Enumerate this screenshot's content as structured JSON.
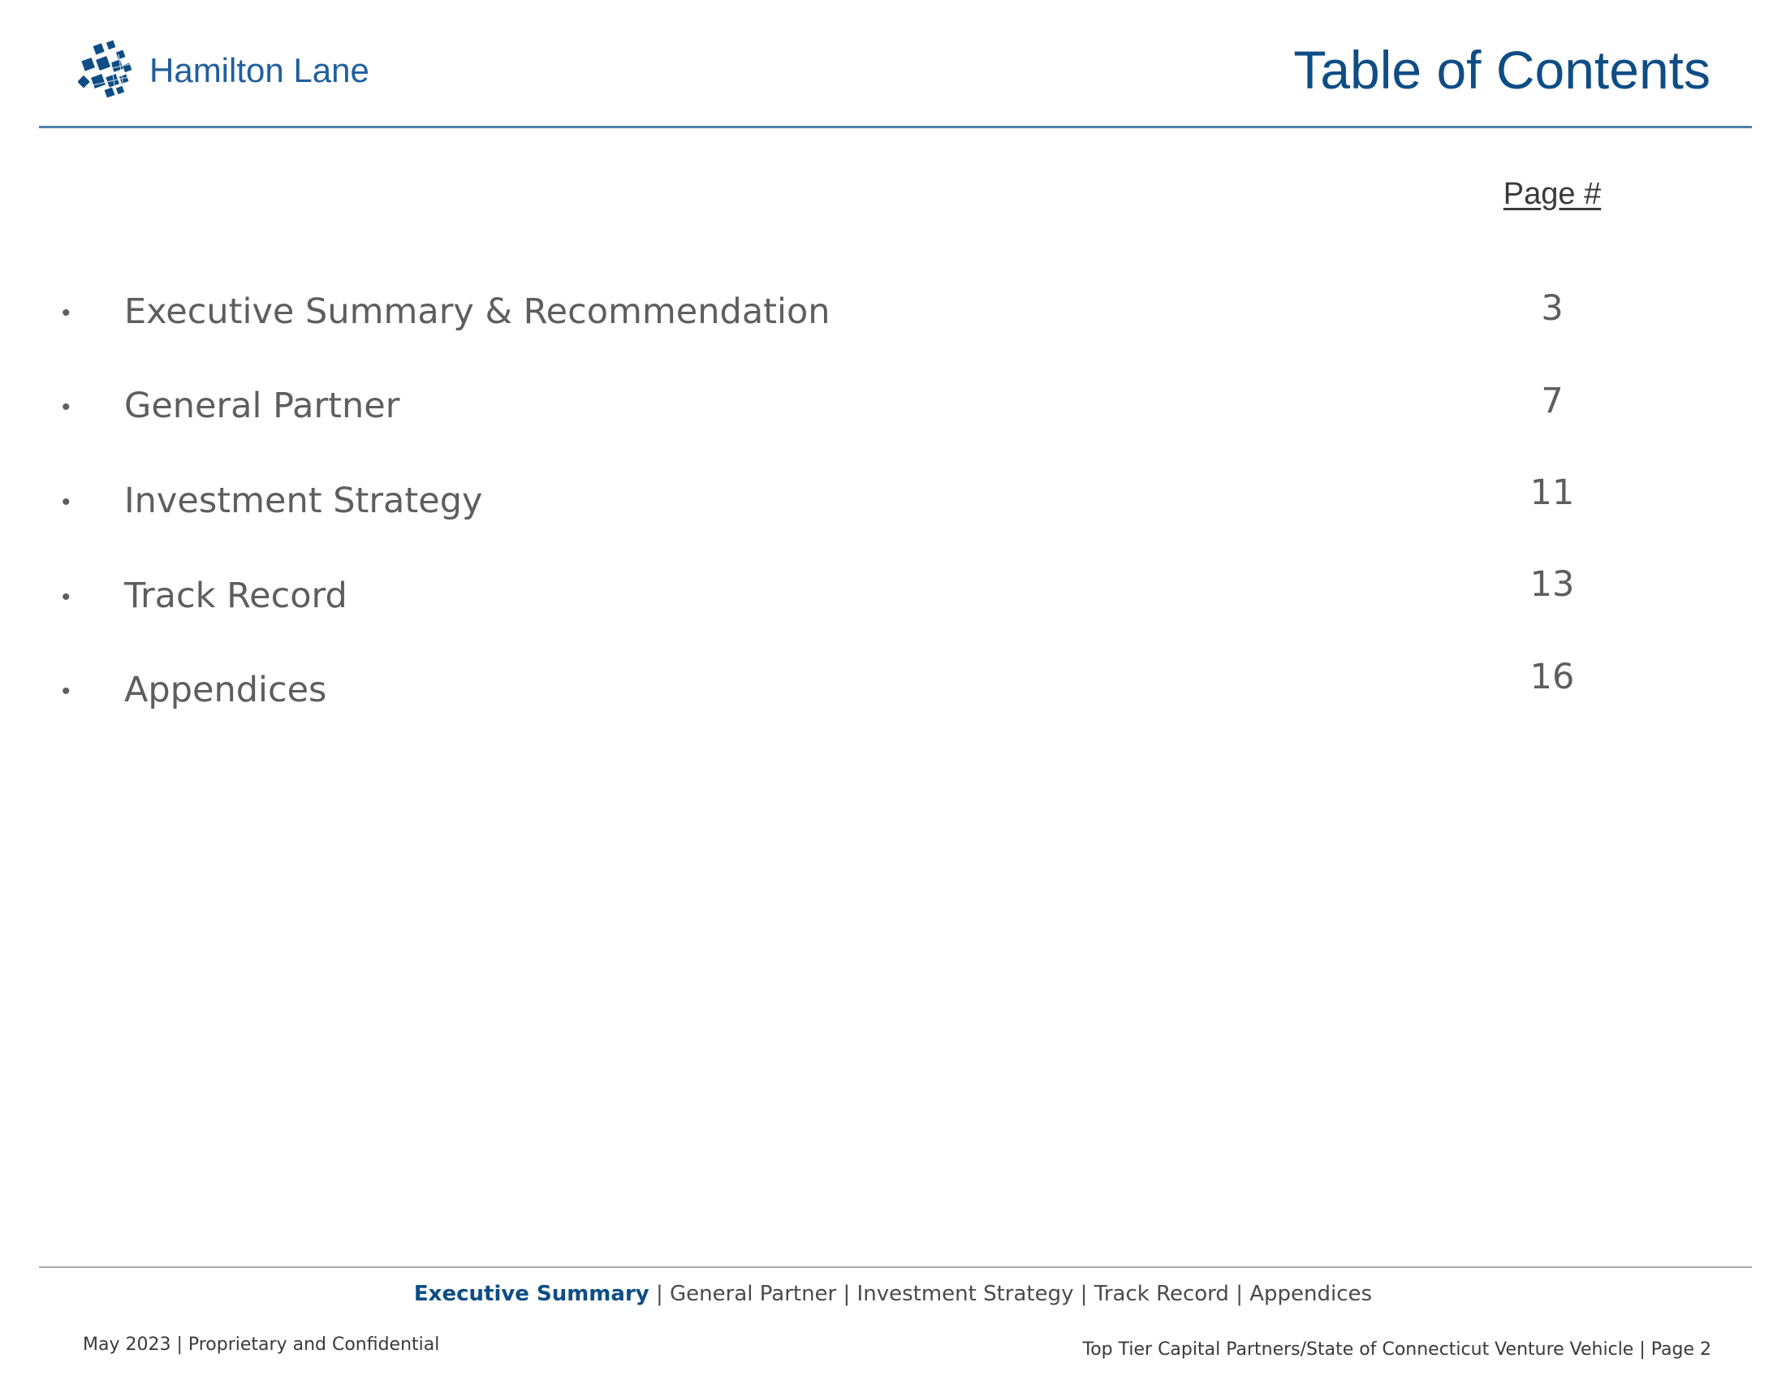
{
  "header": {
    "logo_text": "Hamilton Lane",
    "title": "Table of Contents"
  },
  "toc": {
    "page_column_label": "Page #",
    "items": [
      {
        "label": "Executive Summary & Recommendation",
        "page": "3"
      },
      {
        "label": "General Partner",
        "page": "7"
      },
      {
        "label": "Investment Strategy",
        "page": "11"
      },
      {
        "label": "Track Record",
        "page": "13"
      },
      {
        "label": "Appendices",
        "page": "16"
      }
    ]
  },
  "footer": {
    "nav": [
      {
        "label": "Executive Summary",
        "active": true
      },
      {
        "label": "General Partner",
        "active": false
      },
      {
        "label": "Investment Strategy",
        "active": false
      },
      {
        "label": "Track Record",
        "active": false
      },
      {
        "label": "Appendices",
        "active": false
      }
    ],
    "separator": "|",
    "left_text": "May 2023 | Proprietary and Confidential",
    "right_text": "Top Tier Capital Partners/State of Connecticut Venture Vehicle | Page 2"
  },
  "colors": {
    "brand_blue": "#0e4d85",
    "logo_blue": "#1f5fa0",
    "text_gray": "#5e5e5e",
    "rule_blue": "#4f7fae"
  },
  "icons": {
    "logo_mark": "hamilton-lane-logo-icon",
    "bullet": "bullet-dot"
  }
}
